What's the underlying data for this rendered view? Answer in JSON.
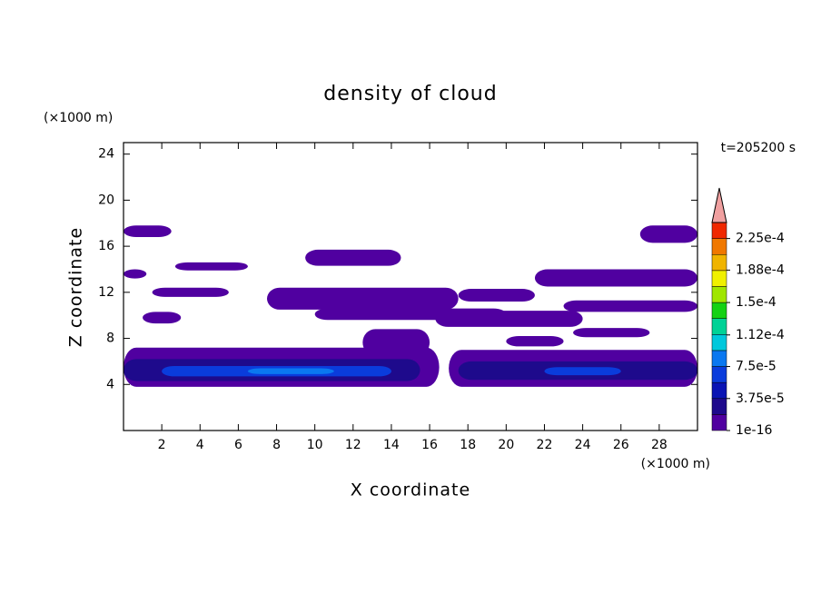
{
  "chart_data": {
    "type": "contour",
    "title": "density of cloud",
    "xlabel": "X coordinate",
    "ylabel": "Z coordinate",
    "x_unit": "(×1000 m)",
    "y_unit": "(×1000 m)",
    "annotation": "t=205200 s",
    "xlim": [
      0,
      30
    ],
    "ylim": [
      0,
      25
    ],
    "xticks": [
      2,
      4,
      6,
      8,
      10,
      12,
      14,
      16,
      18,
      20,
      22,
      24,
      26,
      28
    ],
    "yticks": [
      4,
      8,
      12,
      16,
      20,
      24
    ],
    "colorbar": {
      "levels": [
        1e-16,
        1.875e-05,
        3.75e-05,
        5.625e-05,
        7.5e-05,
        9.375e-05,
        0.0001125,
        0.00013125,
        0.00015,
        0.00016875,
        0.0001875,
        0.00020625,
        0.000225,
        0.00024375
      ],
      "colors": [
        "#5000a0",
        "#1e0a8c",
        "#0a14b4",
        "#0a3cdc",
        "#0a78f0",
        "#00c8dc",
        "#00d296",
        "#14d214",
        "#a0e600",
        "#f0f000",
        "#f0b400",
        "#f07800",
        "#f02800"
      ],
      "over_color": "#f0a0a0",
      "ticks": [
        1e-16,
        {
          "value": 3.75e-05,
          "label": "3.75e-5"
        },
        {
          "value": 7.5e-05,
          "label": "7.5e-5"
        },
        {
          "value": 0.000112,
          "label": "1.12e-4"
        },
        {
          "value": 0.00015,
          "label": "1.5e-4"
        },
        {
          "value": 0.000188,
          "label": "1.88e-4"
        },
        {
          "value": 0.000225,
          "label": "2.25e-4"
        }
      ]
    },
    "regions": [
      {
        "x": [
          0,
          16.5
        ],
        "z": [
          3.8,
          7.2
        ],
        "value": 1e-05
      },
      {
        "x": [
          17,
          30
        ],
        "z": [
          3.8,
          7.0
        ],
        "value": 1e-05
      },
      {
        "x": [
          0,
          15.5
        ],
        "z": [
          4.3,
          6.2
        ],
        "value": 2.5e-05
      },
      {
        "x": [
          17.5,
          30
        ],
        "z": [
          4.4,
          6.0
        ],
        "value": 2.5e-05
      },
      {
        "x": [
          2,
          14
        ],
        "z": [
          4.7,
          5.6
        ],
        "value": 6e-05
      },
      {
        "x": [
          22,
          26
        ],
        "z": [
          4.8,
          5.5
        ],
        "value": 6e-05
      },
      {
        "x": [
          6.5,
          11
        ],
        "z": [
          4.9,
          5.4
        ],
        "value": 8e-05
      },
      {
        "x": [
          0,
          2.5
        ],
        "z": [
          16.8,
          17.8
        ],
        "value": 1e-05
      },
      {
        "x": [
          27,
          30
        ],
        "z": [
          16.3,
          17.8
        ],
        "value": 1e-05
      },
      {
        "x": [
          9.5,
          14.5
        ],
        "z": [
          14.3,
          15.7
        ],
        "value": 1e-05
      },
      {
        "x": [
          2.7,
          6.5
        ],
        "z": [
          13.9,
          14.6
        ],
        "value": 1e-05
      },
      {
        "x": [
          21.5,
          30
        ],
        "z": [
          12.5,
          14.0
        ],
        "value": 1e-05
      },
      {
        "x": [
          0,
          1.2
        ],
        "z": [
          13.2,
          14.0
        ],
        "value": 1e-05
      },
      {
        "x": [
          1.5,
          5.5
        ],
        "z": [
          11.6,
          12.4
        ],
        "value": 1e-05
      },
      {
        "x": [
          7.5,
          17.5
        ],
        "z": [
          10.5,
          12.4
        ],
        "value": 1e-05
      },
      {
        "x": [
          17.5,
          21.5
        ],
        "z": [
          11.2,
          12.3
        ],
        "value": 1e-05
      },
      {
        "x": [
          23,
          30
        ],
        "z": [
          10.3,
          11.3
        ],
        "value": 1e-05
      },
      {
        "x": [
          10,
          20
        ],
        "z": [
          9.6,
          10.6
        ],
        "value": 1e-05
      },
      {
        "x": [
          16.3,
          24
        ],
        "z": [
          9.0,
          10.4
        ],
        "value": 1e-05
      },
      {
        "x": [
          1,
          3
        ],
        "z": [
          9.3,
          10.3
        ],
        "value": 1e-05
      },
      {
        "x": [
          12.5,
          16
        ],
        "z": [
          6.5,
          8.8
        ],
        "value": 1e-05
      },
      {
        "x": [
          23.5,
          27.5
        ],
        "z": [
          8.1,
          8.9
        ],
        "value": 1e-05
      },
      {
        "x": [
          20,
          23
        ],
        "z": [
          7.3,
          8.2
        ],
        "value": 1e-05
      }
    ]
  }
}
